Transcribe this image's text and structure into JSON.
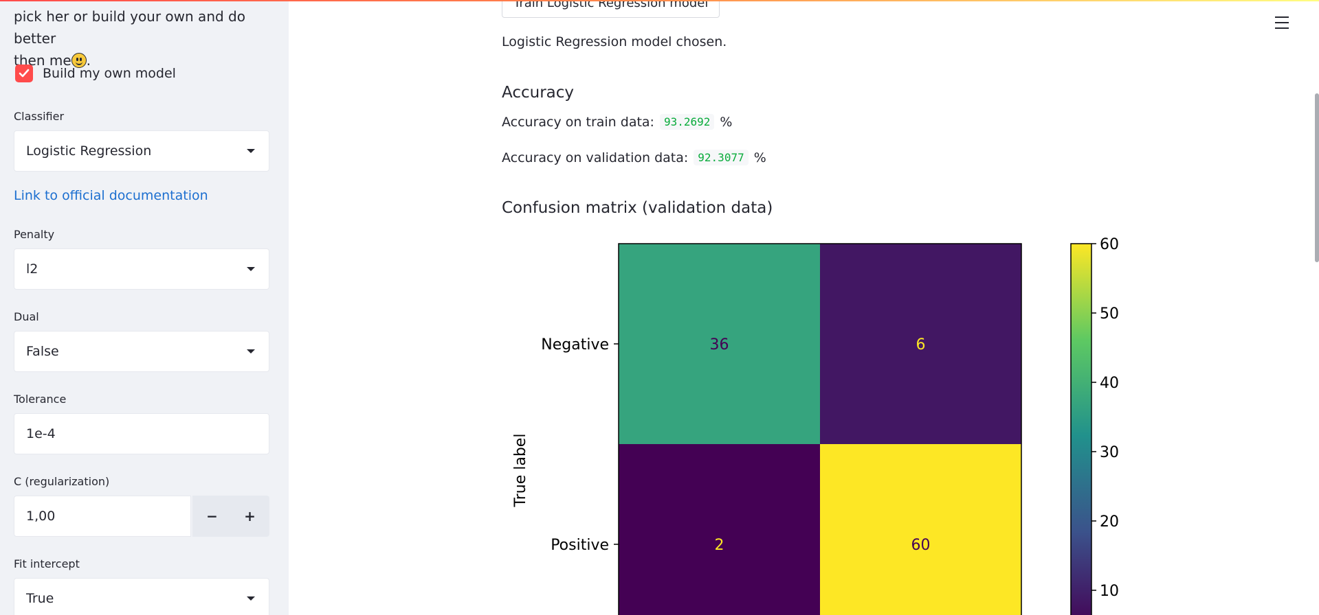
{
  "sidebar": {
    "intro_partial_line": "",
    "intro_line1": "pick her or build your own and do better",
    "intro_line2_prefix": "then me",
    "intro_line2_suffix": ".",
    "build_own_label": "Build my own model",
    "build_own_checked": true,
    "classifier_label": "Classifier",
    "classifier_value": "Logistic Regression",
    "doc_link": "Link to official documentation",
    "penalty_label": "Penalty",
    "penalty_value": "l2",
    "dual_label": "Dual",
    "dual_value": "False",
    "tolerance_label": "Tolerance",
    "tolerance_value": "1e-4",
    "c_label": "C (regularization)",
    "c_value": "1,00",
    "minus": "−",
    "plus": "+",
    "fit_intercept_label": "Fit intercept",
    "fit_intercept_value": "True"
  },
  "main": {
    "train_button": "Train Logistic Regression model",
    "chosen_text": "Logistic Regression model chosen.",
    "accuracy_heading": "Accuracy",
    "train_acc_label": "Accuracy on train data:",
    "train_acc_value": "93.2692",
    "val_acc_label": "Accuracy on validation data:",
    "val_acc_value": "92.3077",
    "percent": "%",
    "cm_heading": "Confusion matrix (validation data)"
  },
  "chart_data": {
    "type": "heatmap",
    "title": "",
    "ylabel": "True label",
    "rows": [
      "Negative",
      "Positive"
    ],
    "values": [
      [
        36,
        6
      ],
      [
        2,
        60
      ]
    ],
    "colormap": "viridis",
    "colorbar_ticks": [
      "60",
      "50",
      "40",
      "30",
      "20",
      "10"
    ],
    "colorbar_range": [
      2,
      60
    ]
  }
}
